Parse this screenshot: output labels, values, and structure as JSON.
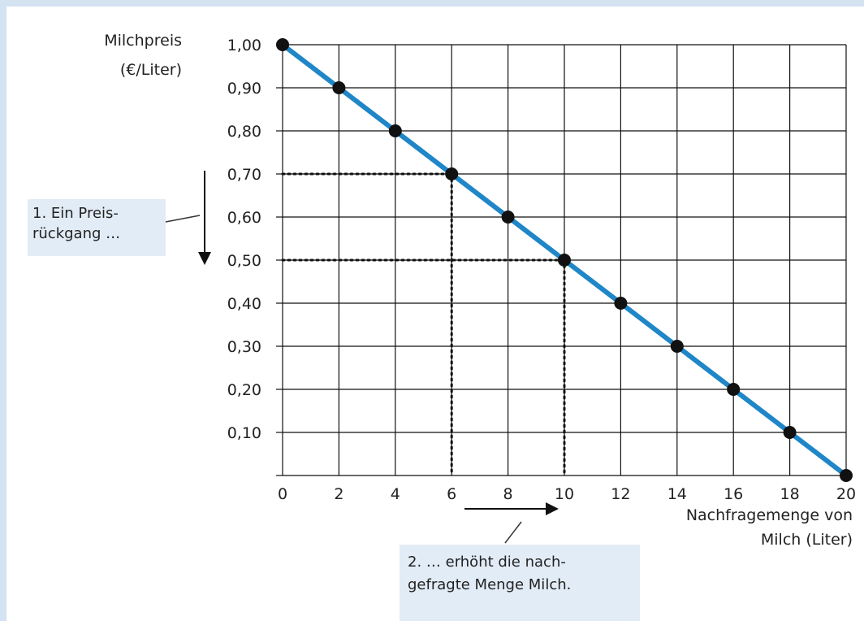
{
  "chart_data": {
    "type": "line",
    "y_axis_label_line1": "Milchpreis",
    "y_axis_label_line2": "(€/Liter)",
    "x_axis_label_line1": "Nachfragemenge von",
    "x_axis_label_line2": "Milch (Liter)",
    "x_ticks": [
      "0",
      "2",
      "4",
      "6",
      "8",
      "10",
      "12",
      "14",
      "16",
      "18",
      "20"
    ],
    "y_ticks": [
      "0,10",
      "0,20",
      "0,30",
      "0,40",
      "0,50",
      "0,60",
      "0,70",
      "0,80",
      "0,90",
      "1,00"
    ],
    "xlim": [
      0,
      20
    ],
    "ylim": [
      0,
      1.0
    ],
    "grid": true,
    "series": [
      {
        "x": [
          0,
          2,
          4,
          6,
          8,
          10,
          12,
          14,
          16,
          18,
          20
        ],
        "y": [
          1.0,
          0.9,
          0.8,
          0.7,
          0.6,
          0.5,
          0.4,
          0.3,
          0.2,
          0.1,
          0.0
        ]
      }
    ],
    "highlights": [
      {
        "x": 6,
        "y": 0.7
      },
      {
        "x": 10,
        "y": 0.5
      }
    ],
    "annotations": {
      "price_drop_line1": "1. Ein Preis-",
      "price_drop_line2": "rückgang …",
      "quantity_rise_line1": "2. … erhöht die nach-",
      "quantity_rise_line2": "gefragte Menge Milch."
    },
    "colors": {
      "line": "#1f86c8",
      "marker": "#111111",
      "grid": "#111111",
      "annotation_bg": "#e2ecf6",
      "frame": "#d3e3f1"
    }
  }
}
